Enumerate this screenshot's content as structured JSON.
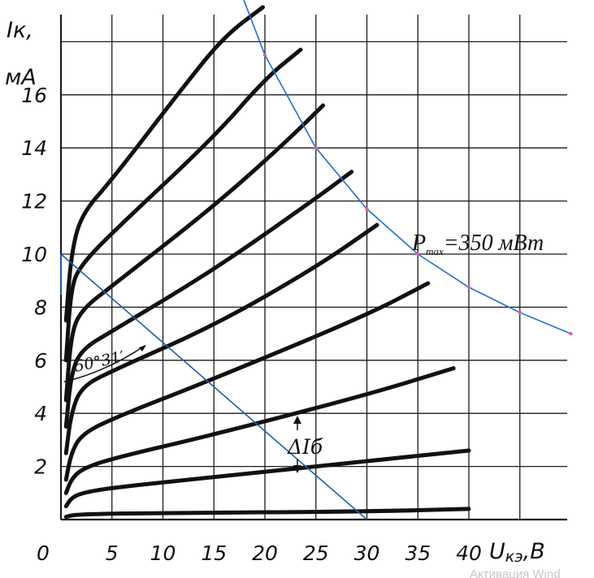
{
  "chart_data": {
    "type": "line",
    "x_axis": {
      "label": "U",
      "label_sub": "кэ",
      "label_unit": ",В",
      "range": [
        0,
        45
      ],
      "ticks": [
        0,
        5,
        10,
        15,
        20,
        25,
        30,
        35,
        40
      ],
      "tick_labels": [
        "0",
        "5",
        "10",
        "15",
        "20",
        "25",
        "30",
        "35",
        "40"
      ]
    },
    "y_axis": {
      "label_line1": "Iк,",
      "label_line2": "мА",
      "range": [
        0,
        20
      ],
      "ticks": [
        2,
        4,
        6,
        8,
        10,
        12,
        14,
        16
      ],
      "tick_labels": [
        "2",
        "4",
        "6",
        "8",
        "10",
        "12",
        "14",
        "16"
      ]
    },
    "grid": true,
    "series": [
      {
        "points": [
          [
            0.5,
            0.1
          ],
          [
            1.5,
            0.2
          ],
          [
            10,
            0.25
          ],
          [
            30,
            0.3
          ],
          [
            40,
            0.4
          ]
        ]
      },
      {
        "points": [
          [
            0.5,
            0.5
          ],
          [
            1,
            0.8
          ],
          [
            2,
            1.0
          ],
          [
            5,
            1.2
          ],
          [
            15,
            1.6
          ],
          [
            30,
            2.2
          ],
          [
            40,
            2.6
          ]
        ]
      },
      {
        "points": [
          [
            0.5,
            1.0
          ],
          [
            1,
            1.5
          ],
          [
            2,
            1.9
          ],
          [
            5,
            2.3
          ],
          [
            15,
            3.2
          ],
          [
            30,
            4.7
          ],
          [
            38.5,
            5.7
          ]
        ]
      },
      {
        "points": [
          [
            0.5,
            1.5
          ],
          [
            1,
            2.5
          ],
          [
            2,
            3.2
          ],
          [
            5,
            3.8
          ],
          [
            15,
            5.3
          ],
          [
            30,
            7.7
          ],
          [
            36,
            8.9
          ]
        ]
      },
      {
        "points": [
          [
            0.5,
            2.5
          ],
          [
            1,
            4.0
          ],
          [
            2,
            5.0
          ],
          [
            5,
            5.6
          ],
          [
            15,
            7.3
          ],
          [
            25,
            9.5
          ],
          [
            31,
            11.1
          ]
        ]
      },
      {
        "points": [
          [
            0.5,
            3.5
          ],
          [
            1,
            5.5
          ],
          [
            2,
            6.4
          ],
          [
            5,
            7.1
          ],
          [
            15,
            9.4
          ],
          [
            25,
            12.1
          ],
          [
            28.5,
            13.1
          ]
        ]
      },
      {
        "points": [
          [
            0.5,
            4.5
          ],
          [
            1,
            7.0
          ],
          [
            2,
            7.9
          ],
          [
            5,
            8.8
          ],
          [
            15,
            11.8
          ],
          [
            22,
            14.2
          ],
          [
            25.7,
            15.6
          ]
        ]
      },
      {
        "points": [
          [
            0.5,
            6.0
          ],
          [
            1,
            8.8
          ],
          [
            2,
            9.6
          ],
          [
            5,
            10.8
          ],
          [
            15,
            14.4
          ],
          [
            20,
            16.6
          ],
          [
            23.5,
            17.7
          ]
        ]
      },
      {
        "points": [
          [
            0.5,
            7.5
          ],
          [
            1,
            10.0
          ],
          [
            2,
            11.5
          ],
          [
            5,
            12.8
          ],
          [
            12,
            16.3
          ],
          [
            16,
            18.2
          ],
          [
            19.8,
            19.3
          ]
        ]
      }
    ],
    "power_hyperbola": {
      "label_main": "P",
      "label_sub": "max",
      "label_value": "=350 мВт",
      "color": "#1f6fd1",
      "marker_color": "#e05bb0",
      "points": [
        [
          17.8,
          19.7
        ],
        [
          20,
          17.5
        ],
        [
          25,
          14.0
        ],
        [
          30,
          11.7
        ],
        [
          35,
          10.0
        ],
        [
          40,
          8.75
        ],
        [
          45,
          7.8
        ],
        [
          50,
          7.0
        ]
      ]
    },
    "load_line": {
      "color": "#1f5fa8",
      "points": [
        [
          0,
          10
        ],
        [
          30,
          0
        ]
      ]
    },
    "annotations": {
      "angle": "50°31′",
      "delta_ib": "ΔIб"
    }
  },
  "watermark": "Активация Wind"
}
